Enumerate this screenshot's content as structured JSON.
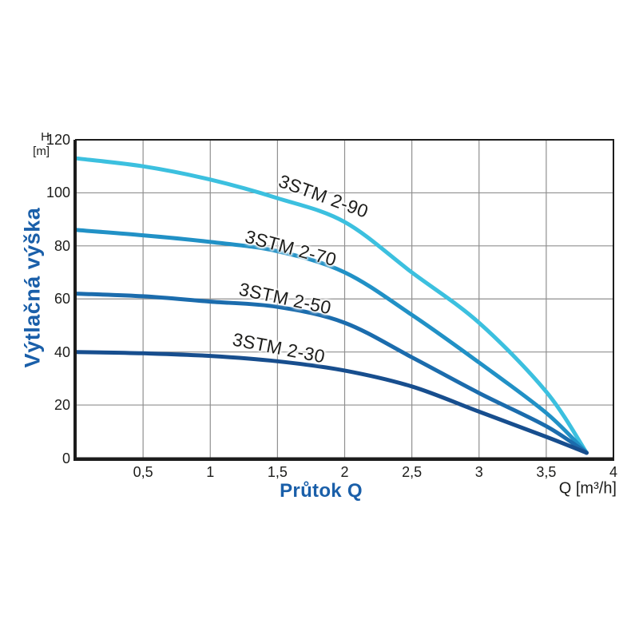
{
  "page": {
    "background": "#ffffff"
  },
  "y_axis": {
    "unit_line1": "H",
    "unit_line2": "[m]",
    "title": "Výtlačná výška",
    "min": 0,
    "max": 120,
    "tick_step": 20,
    "ticks": [
      0,
      20,
      40,
      60,
      80,
      100,
      120
    ]
  },
  "x_axis": {
    "title": "Průtok Q",
    "unit": "Q [m³/h]",
    "min": 0,
    "max": 4,
    "tick_step": 0.5,
    "ticks": [
      {
        "value": 0.5,
        "label": "0,5"
      },
      {
        "value": 1,
        "label": "1"
      },
      {
        "value": 1.5,
        "label": "1,5"
      },
      {
        "value": 2,
        "label": "2"
      },
      {
        "value": 2.5,
        "label": "2,5"
      },
      {
        "value": 3,
        "label": "3"
      },
      {
        "value": 3.5,
        "label": "3,5"
      },
      {
        "value": 4,
        "label": "4"
      }
    ]
  },
  "chart_data": {
    "type": "line",
    "title": "",
    "xlabel": "Průtok Q",
    "ylabel": "Výtlačná výška",
    "x_unit": "Q [m³/h]",
    "y_unit": "H [m]",
    "xlim": [
      0,
      4
    ],
    "ylim": [
      0,
      120
    ],
    "grid": true,
    "grid_color": "#8f8f8f",
    "x": [
      0,
      0.5,
      1,
      1.5,
      2,
      2.5,
      3,
      3.5,
      3.8
    ],
    "series": [
      {
        "name": "3STM 2-90",
        "color": "#3cc0df",
        "values": [
          113,
          110,
          105,
          98,
          89,
          70,
          51,
          25,
          2
        ],
        "label": {
          "x": 1.84,
          "y": 98.5,
          "angle_deg": 20
        }
      },
      {
        "name": "3STM 2-70",
        "color": "#2191c6",
        "values": [
          86,
          84,
          81.5,
          78,
          70,
          54,
          36,
          17,
          2
        ],
        "label": {
          "x": 1.6,
          "y": 79,
          "angle_deg": 15
        }
      },
      {
        "name": "3STM 2-50",
        "color": "#1b6cad",
        "values": [
          62,
          61,
          59,
          57,
          51,
          38,
          24.5,
          12,
          2
        ],
        "label": {
          "x": 1.56,
          "y": 60,
          "angle_deg": 12
        }
      },
      {
        "name": "3STM 2-30",
        "color": "#174e8e",
        "values": [
          40,
          39.5,
          38.5,
          36.5,
          33,
          27,
          17.5,
          8,
          2
        ],
        "label": {
          "x": 1.51,
          "y": 41.5,
          "angle_deg": 11
        }
      }
    ],
    "convergence_point": {
      "x": 3.8,
      "y": 2
    }
  }
}
